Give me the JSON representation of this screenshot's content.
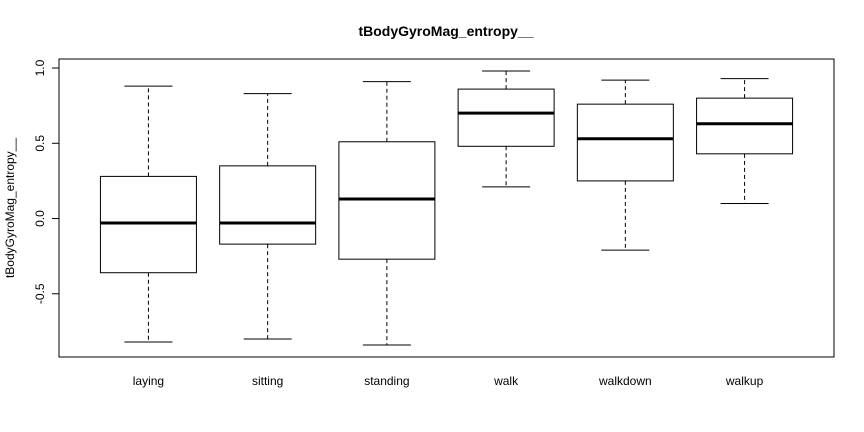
{
  "chart_data": {
    "type": "boxplot",
    "title": "tBodyGyroMag_entropy__",
    "xlabel": "",
    "ylabel": "tBodyGyroMag_entropy__",
    "ylim": [
      -0.92,
      1.06
    ],
    "yticks": [
      -0.5,
      0.0,
      0.5,
      1.0
    ],
    "ytick_labels": [
      "-0.5",
      "0.0",
      "0.5",
      "1.0"
    ],
    "grid": false,
    "categories": [
      "laying",
      "sitting",
      "standing",
      "walk",
      "walkdown",
      "walkup"
    ],
    "boxes": [
      {
        "category": "laying",
        "whisker_low": -0.82,
        "q1": -0.36,
        "median": -0.03,
        "q3": 0.28,
        "whisker_high": 0.88
      },
      {
        "category": "sitting",
        "whisker_low": -0.8,
        "q1": -0.17,
        "median": -0.03,
        "q3": 0.35,
        "whisker_high": 0.83
      },
      {
        "category": "standing",
        "whisker_low": -0.84,
        "q1": -0.27,
        "median": 0.13,
        "q3": 0.51,
        "whisker_high": 0.91
      },
      {
        "category": "walk",
        "whisker_low": 0.21,
        "q1": 0.48,
        "median": 0.7,
        "q3": 0.86,
        "whisker_high": 0.98
      },
      {
        "category": "walkdown",
        "whisker_low": -0.21,
        "q1": 0.25,
        "median": 0.53,
        "q3": 0.76,
        "whisker_high": 0.92
      },
      {
        "category": "walkup",
        "whisker_low": 0.1,
        "q1": 0.43,
        "median": 0.63,
        "q3": 0.8,
        "whisker_high": 0.93
      }
    ]
  }
}
